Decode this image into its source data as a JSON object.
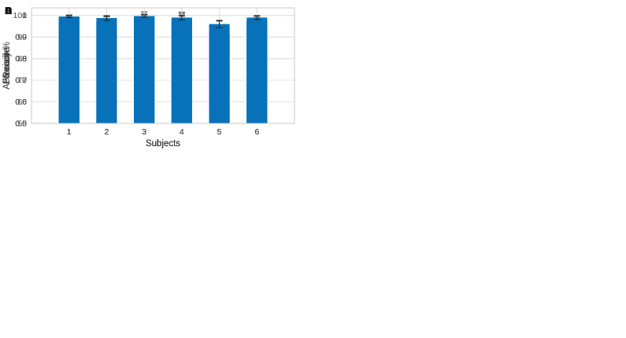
{
  "figure": {
    "background": "#ffffff",
    "panel_letters": [
      "A",
      "B",
      "C",
      "D"
    ]
  },
  "colors": {
    "bar": "#0772ba",
    "grid": "#e4e4e4",
    "axis_box": "#c9c9c9",
    "tick_label": "#4d4d4d",
    "axis_label": "#3c3c3c",
    "panel_letter": "#111111",
    "error_bar": "#1a1a1a"
  },
  "chart_data": [
    {
      "panel_letter": "A",
      "type": "bar",
      "title": "",
      "xlabel": "Subjects",
      "ylabel": "Precision",
      "categories": [
        "1",
        "2",
        "3",
        "4",
        "5",
        "6"
      ],
      "values": [
        0.984,
        0.976,
        0.995,
        0.987,
        0.91,
        0.971
      ],
      "errors": [
        0.015,
        0.018,
        0.011,
        0.028,
        0.064,
        0.025
      ],
      "ylim": [
        0.5,
        1.035
      ],
      "yticks": [
        0.5,
        0.6,
        0.7,
        0.8,
        0.9,
        1
      ],
      "ytick_labels": [
        "0.5",
        "0.6",
        "0.7",
        "0.8",
        "0.9",
        "1"
      ],
      "grid": true,
      "legend": "none"
    },
    {
      "panel_letter": "B",
      "type": "bar",
      "title": "",
      "xlabel": "Subjects",
      "ylabel": "Recall",
      "categories": [
        "1",
        "2",
        "3",
        "4",
        "5",
        "6"
      ],
      "values": [
        0.992,
        0.969,
        0.985,
        0.965,
        0.92,
        0.978
      ],
      "errors": [
        0.01,
        0.029,
        0.031,
        0.043,
        0.031,
        0.011
      ],
      "ylim": [
        0.5,
        1.035
      ],
      "yticks": [
        0.5,
        0.6,
        0.7,
        0.8,
        0.9,
        1
      ],
      "ytick_labels": [
        "0.5",
        "0.6",
        "0.7",
        "0.8",
        "0.9",
        "1"
      ],
      "grid": true,
      "legend": "none"
    },
    {
      "panel_letter": "C",
      "type": "bar",
      "title": "",
      "xlabel": "Subjects",
      "ylabel": "F1-score",
      "categories": [
        "1",
        "2",
        "3",
        "4",
        "5",
        "6"
      ],
      "values": [
        0.988,
        0.973,
        0.99,
        0.976,
        0.914,
        0.975
      ],
      "errors": [
        0.01,
        0.01,
        0.013,
        0.02,
        0.033,
        0.013
      ],
      "ylim": [
        0.5,
        1.035
      ],
      "yticks": [
        0.5,
        0.6,
        0.7,
        0.8,
        0.9,
        1
      ],
      "ytick_labels": [
        "0.5",
        "0.6",
        "0.7",
        "0.8",
        "0.9",
        "1"
      ],
      "grid": true,
      "legend": "none"
    },
    {
      "panel_letter": "D",
      "type": "bar",
      "title": "",
      "xlabel": "Subjects",
      "ylabel": "Accuracy %",
      "categories": [
        "1",
        "2",
        "3",
        "4",
        "5",
        "6"
      ],
      "values": [
        99.5,
        98.8,
        99.7,
        99.0,
        96.0,
        99.0
      ],
      "errors": [
        0.5,
        1.1,
        0.5,
        1.1,
        1.7,
        0.9
      ],
      "ylim": [
        50,
        103.5
      ],
      "yticks": [
        50,
        60,
        70,
        80,
        90,
        100
      ],
      "ytick_labels": [
        "50",
        "60",
        "70",
        "80",
        "90",
        "100"
      ],
      "grid": true,
      "legend": "none"
    }
  ]
}
